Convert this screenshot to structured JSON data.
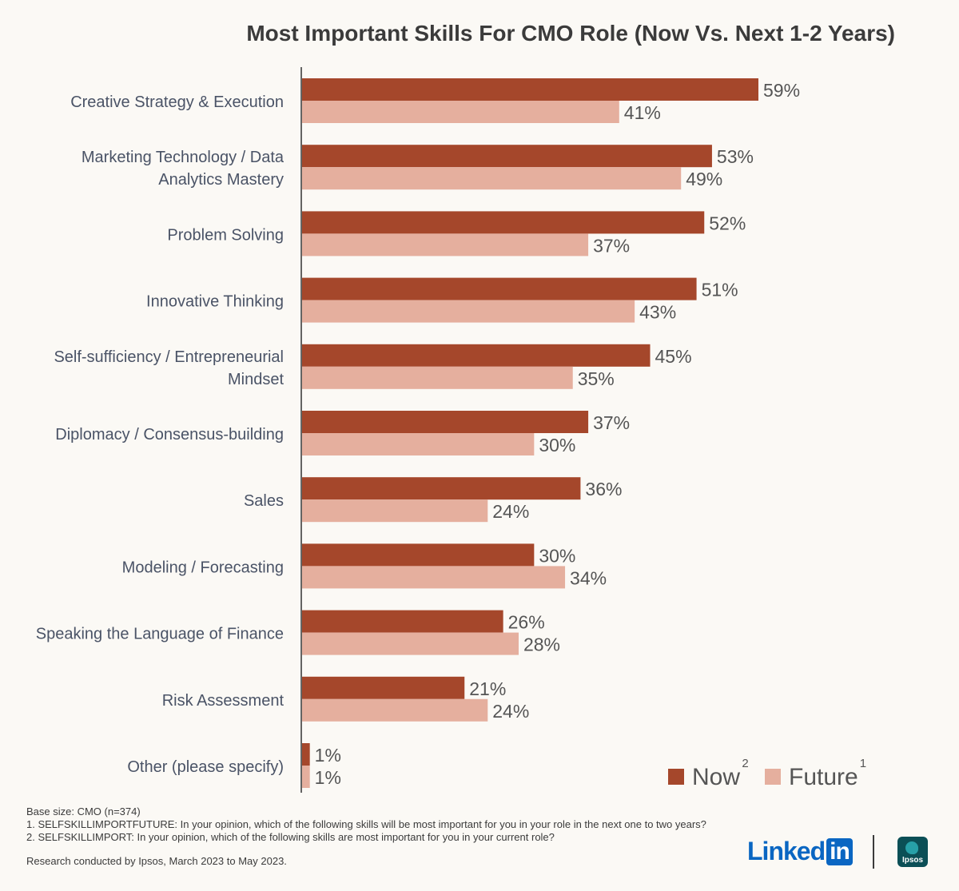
{
  "chart_data": {
    "type": "bar",
    "orientation": "horizontal",
    "title": "Most Important Skills For CMO Role (Now Vs. Next 1-2 Years)",
    "categories": [
      [
        "Creative Strategy & Execution"
      ],
      [
        "Marketing Technology / Data",
        "Analytics Mastery"
      ],
      [
        "Problem Solving"
      ],
      [
        "Innovative Thinking"
      ],
      [
        "Self-sufficiency / Entrepreneurial",
        "Mindset"
      ],
      [
        "Diplomacy / Consensus-building"
      ],
      [
        "Sales"
      ],
      [
        "Modeling / Forecasting"
      ],
      [
        "Speaking the Language of Finance"
      ],
      [
        "Risk Assessment"
      ],
      [
        "Other (please specify)"
      ]
    ],
    "series": [
      {
        "name": "Now",
        "superscript": "2",
        "color": "#a5472b",
        "values": [
          59,
          53,
          52,
          51,
          45,
          37,
          36,
          30,
          26,
          21,
          1
        ]
      },
      {
        "name": "Future",
        "superscript": "1",
        "color": "#e5af9e",
        "values": [
          41,
          49,
          37,
          43,
          35,
          30,
          24,
          34,
          28,
          24,
          1
        ]
      }
    ],
    "value_suffix": "%",
    "xlim": [
      0,
      100
    ],
    "legend_position": "bottom-right"
  },
  "footnotes": {
    "base": "Base size: CMO (n=374)",
    "note1": "1. SELFSKILLIMPORTFUTURE: In your opinion, which of the following skills will be most important for you in your role in the next one to two years?",
    "note2": "2. SELFSKILLIMPORT: In your opinion, which of the following skills are most important for you in your current role?",
    "research": "Research conducted by Ipsos, March 2023 to May 2023."
  },
  "logos": {
    "linkedin_text": "Linked",
    "linkedin_box": "in",
    "ipsos_text": "Ipsos"
  }
}
